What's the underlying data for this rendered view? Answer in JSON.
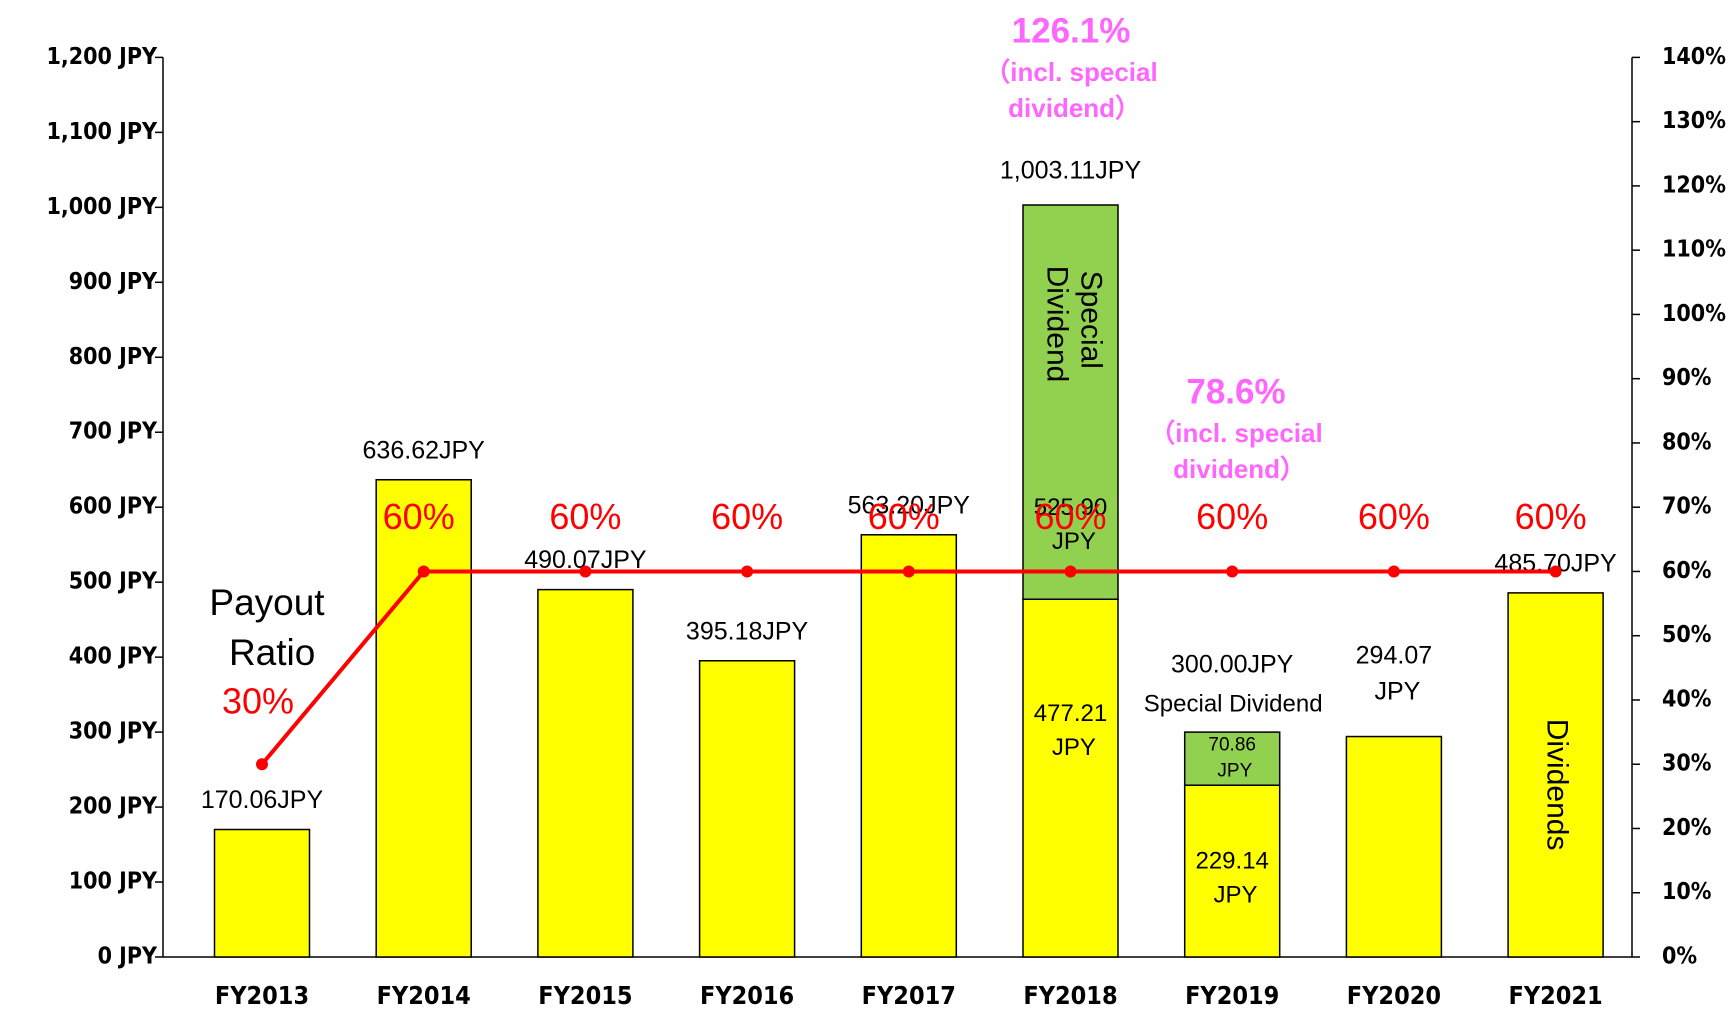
{
  "chart_data": {
    "type": "bar",
    "categories": [
      "FY2013",
      "FY2014",
      "FY2015",
      "FY2016",
      "FY2017",
      "FY2018",
      "FY2019",
      "FY2020",
      "FY2021"
    ],
    "series": [
      {
        "name": "Dividends",
        "color": "#ffff00",
        "values": [
          170.06,
          636.62,
          490.07,
          395.18,
          563.2,
          477.21,
          229.14,
          294.07,
          485.7
        ],
        "value_labels": [
          "170.06JPY",
          "636.62JPY",
          "490.07JPY",
          "395.18JPY",
          "563.20JPY",
          "477.21 JPY",
          "229.14 JPY",
          "294.07 JPY",
          "485.70JPY"
        ]
      },
      {
        "name": "Special Dividend",
        "color": "#92d050",
        "values": [
          null,
          null,
          null,
          null,
          null,
          525.9,
          70.86,
          null,
          null
        ],
        "value_labels": [
          null,
          null,
          null,
          null,
          null,
          "525.90 JPY",
          "70.86 JPY",
          null,
          null
        ]
      },
      {
        "name": "Payout Ratio",
        "type": "line",
        "axis": "y2",
        "color": "#ff0000",
        "values": [
          30,
          60,
          60,
          60,
          60,
          60,
          60,
          60,
          60
        ],
        "value_labels": [
          "30%",
          "60%",
          "60%",
          "60%",
          "60%",
          "60%",
          "60%",
          "60%",
          "60%"
        ]
      }
    ],
    "total_labels": [
      null,
      null,
      null,
      null,
      null,
      "1,003.11JPY",
      "300.00JPY",
      null,
      null
    ],
    "annotations": [
      {
        "category": "FY2018",
        "text": "126.1%",
        "note": "（incl. special dividend）"
      },
      {
        "category": "FY2019",
        "text": "78.6%",
        "note": "（incl. special dividend）",
        "label": "Special Dividend"
      }
    ],
    "ylim": [
      0,
      1200
    ],
    "yticks": [
      {
        "value": 0,
        "label": "0 JPY"
      },
      {
        "value": 100,
        "label": "100 JPY"
      },
      {
        "value": 200,
        "label": "200 JPY"
      },
      {
        "value": 300,
        "label": "300 JPY"
      },
      {
        "value": 400,
        "label": "400 JPY"
      },
      {
        "value": 500,
        "label": "500 JPY"
      },
      {
        "value": 600,
        "label": "600 JPY"
      },
      {
        "value": 700,
        "label": "700 JPY"
      },
      {
        "value": 800,
        "label": "800 JPY"
      },
      {
        "value": 900,
        "label": "900 JPY"
      },
      {
        "value": 1000,
        "label": "1,000 JPY"
      },
      {
        "value": 1100,
        "label": "1,100 JPY"
      },
      {
        "value": 1200,
        "label": "1,200 JPY"
      }
    ],
    "y2lim": [
      0,
      140
    ],
    "y2ticks": [
      {
        "value": 0,
        "label": "0%"
      },
      {
        "value": 10,
        "label": "10%"
      },
      {
        "value": 20,
        "label": "20%"
      },
      {
        "value": 30,
        "label": "30%"
      },
      {
        "value": 40,
        "label": "40%"
      },
      {
        "value": 50,
        "label": "50%"
      },
      {
        "value": 60,
        "label": "60%"
      },
      {
        "value": 70,
        "label": "70%"
      },
      {
        "value": 80,
        "label": "80%"
      },
      {
        "value": 90,
        "label": "90%"
      },
      {
        "value": 100,
        "label": "100%"
      },
      {
        "value": 110,
        "label": "110%"
      },
      {
        "value": 120,
        "label": "120%"
      },
      {
        "value": 130,
        "label": "130%"
      },
      {
        "value": 140,
        "label": "140%"
      }
    ],
    "grid": false,
    "annotation_color": "#ff66ff"
  }
}
